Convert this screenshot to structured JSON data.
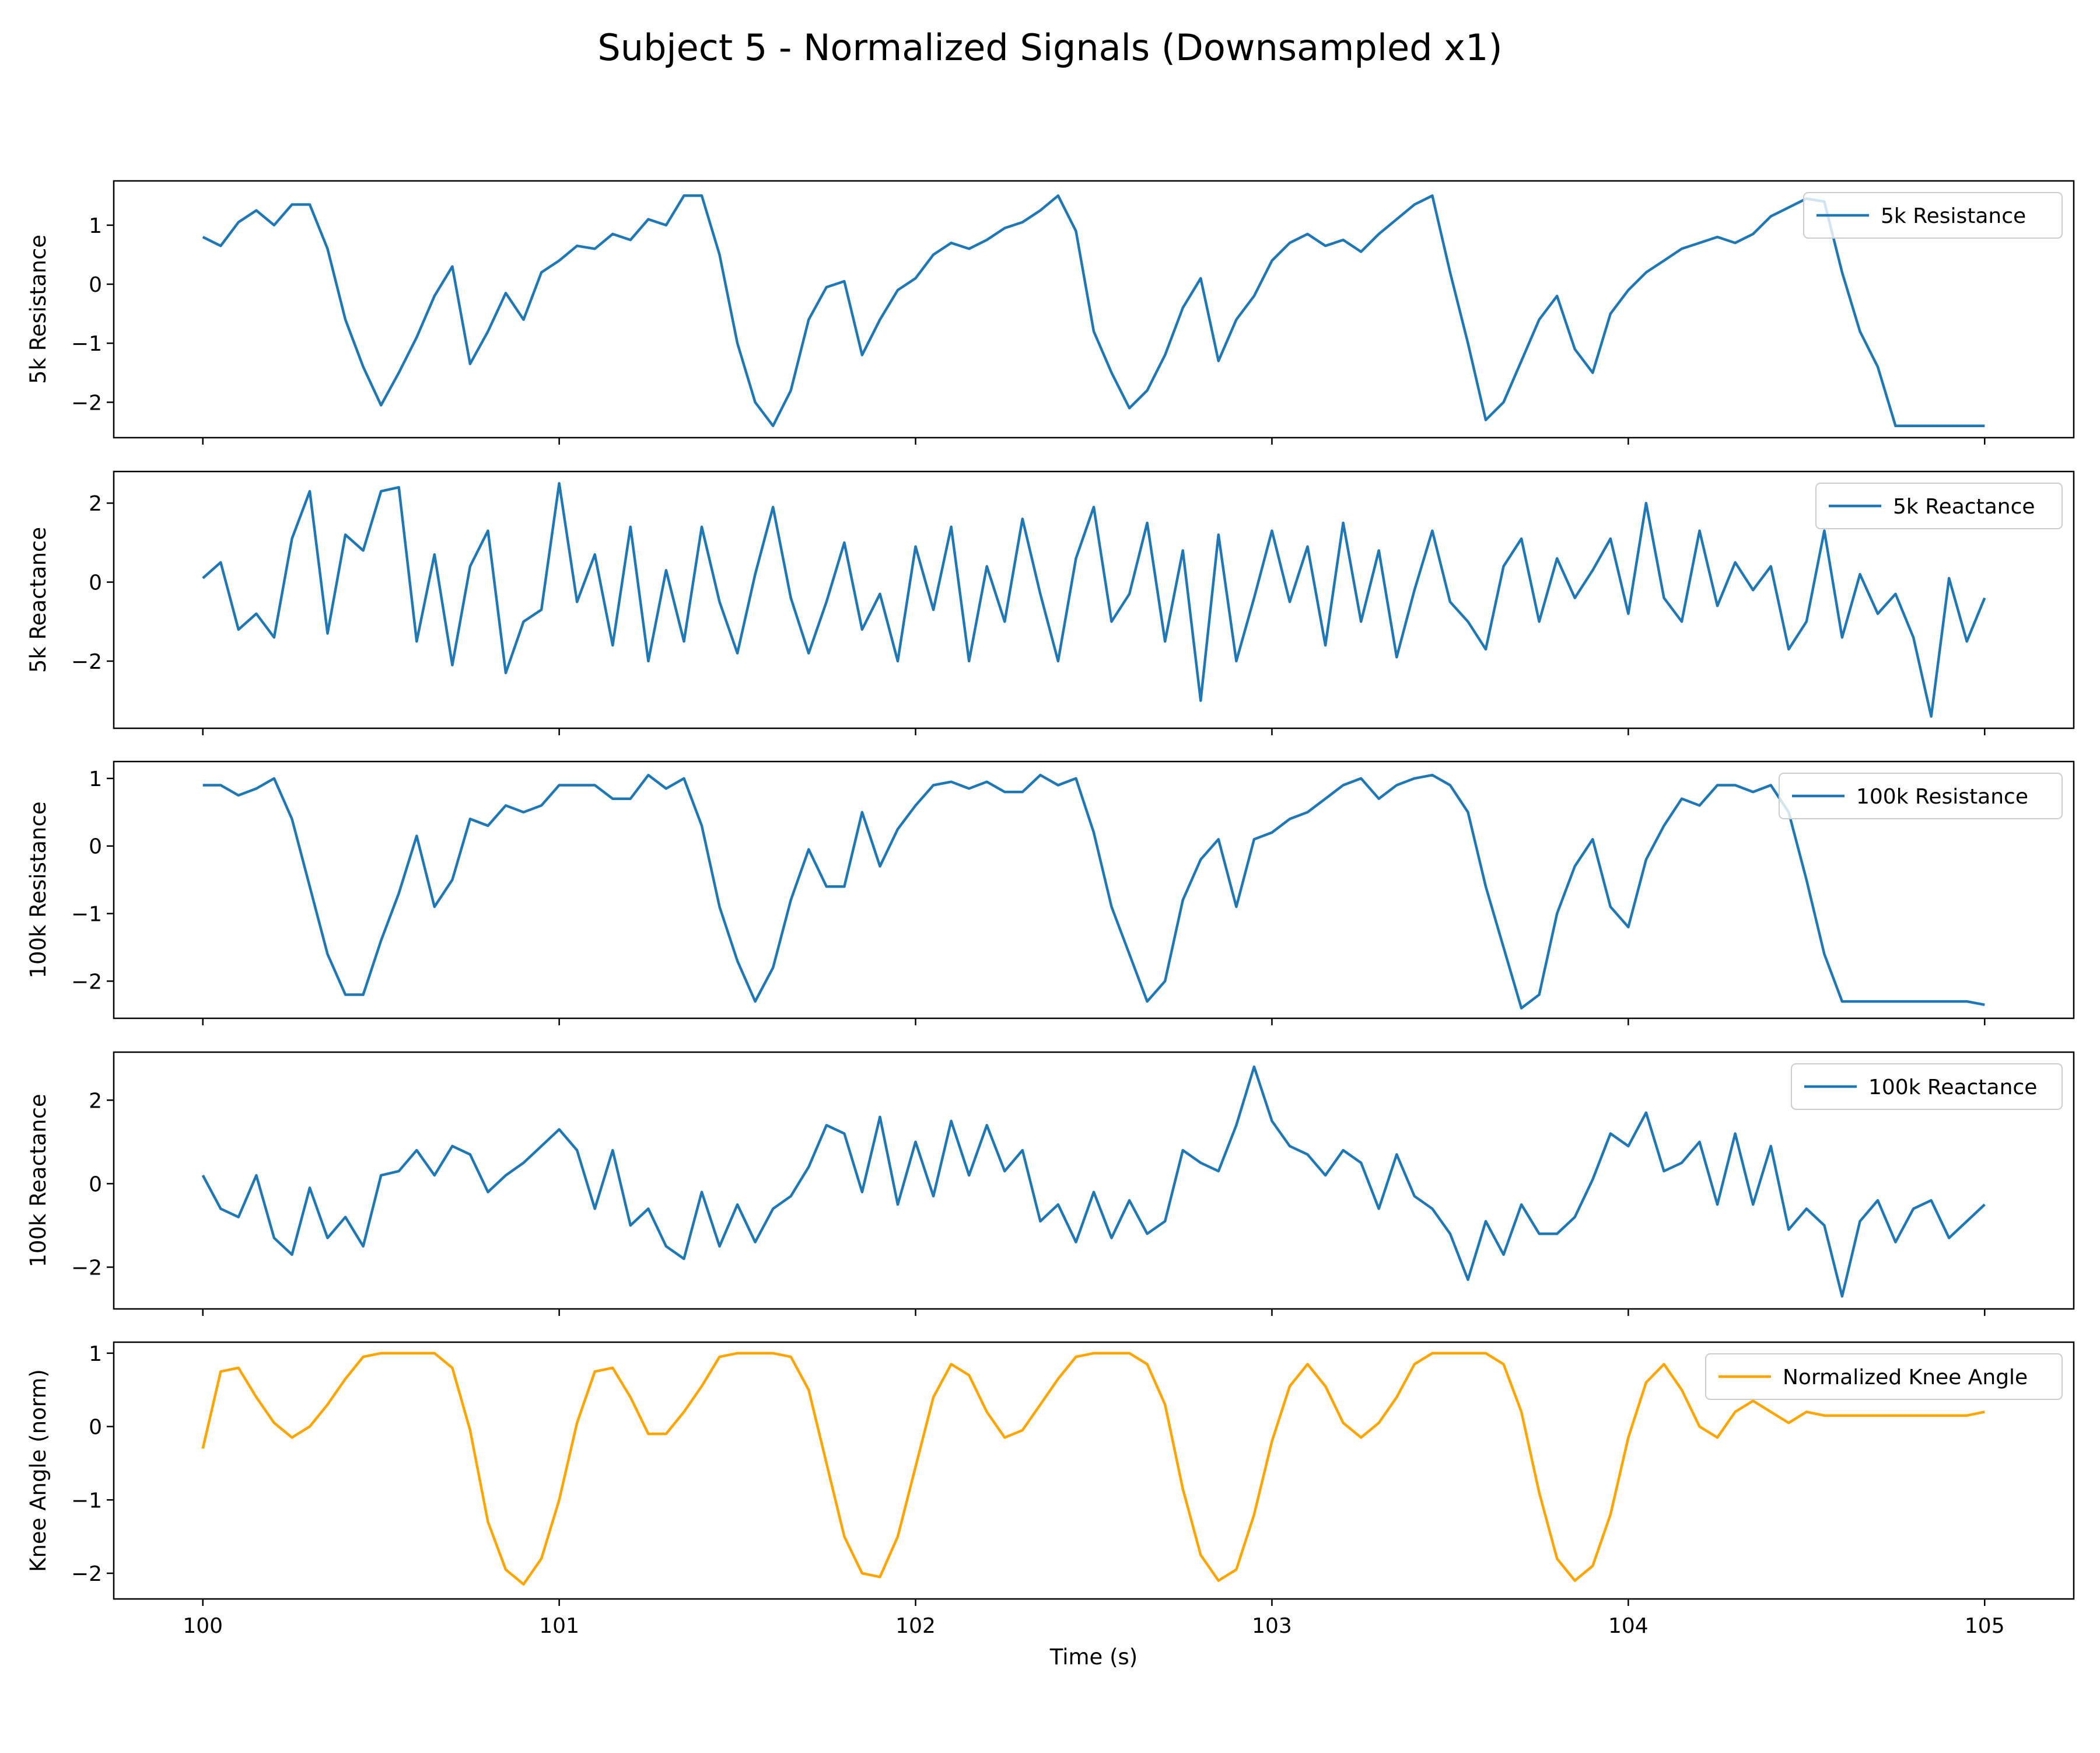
{
  "figure": {
    "title": "Subject 5 - Normalized Signals (Downsampled x1)",
    "xlabel": "Time (s)"
  },
  "chart_data": [
    {
      "type": "line",
      "ylabel": "5k Resistance",
      "legend": "5k Resistance",
      "legend_loc": "upper-right",
      "color": "#1f77b4",
      "xlim": [
        99.75,
        105.25
      ],
      "ylim": [
        -2.6,
        1.75
      ],
      "yticks": [
        1,
        0,
        -1,
        -2
      ],
      "xticks": [
        100,
        101,
        102,
        103,
        104,
        105
      ],
      "x": [
        100.0,
        100.05,
        100.1,
        100.15,
        100.2,
        100.25,
        100.3,
        100.35,
        100.4,
        100.45,
        100.5,
        100.55,
        100.6,
        100.65,
        100.7,
        100.75,
        100.8,
        100.85,
        100.9,
        100.95,
        101.0,
        101.05,
        101.1,
        101.15,
        101.2,
        101.25,
        101.3,
        101.35,
        101.4,
        101.45,
        101.5,
        101.55,
        101.6,
        101.65,
        101.7,
        101.75,
        101.8,
        101.85,
        101.9,
        101.95,
        102.0,
        102.05,
        102.1,
        102.15,
        102.2,
        102.25,
        102.3,
        102.35,
        102.4,
        102.45,
        102.5,
        102.55,
        102.6,
        102.65,
        102.7,
        102.75,
        102.8,
        102.85,
        102.9,
        102.95,
        103.0,
        103.05,
        103.1,
        103.15,
        103.2,
        103.25,
        103.3,
        103.35,
        103.4,
        103.45,
        103.5,
        103.55,
        103.6,
        103.65,
        103.7,
        103.75,
        103.8,
        103.85,
        103.9,
        103.95,
        104.0,
        104.05,
        104.1,
        104.15,
        104.2,
        104.25,
        104.3,
        104.35,
        104.4,
        104.45,
        104.5,
        104.55,
        104.6,
        104.65,
        104.7,
        104.75,
        104.8,
        104.85,
        104.9,
        104.95,
        105.0
      ],
      "y": [
        0.8,
        0.65,
        1.05,
        1.25,
        1.0,
        1.35,
        1.35,
        0.6,
        -0.6,
        -1.4,
        -2.05,
        -1.5,
        -0.9,
        -0.2,
        0.3,
        -1.35,
        -0.8,
        -0.15,
        -0.6,
        0.2,
        0.4,
        0.65,
        0.6,
        0.85,
        0.75,
        1.1,
        1.0,
        1.5,
        1.5,
        0.5,
        -1.0,
        -2.0,
        -2.4,
        -1.8,
        -0.6,
        -0.05,
        0.05,
        -1.2,
        -0.6,
        -0.1,
        0.1,
        0.5,
        0.7,
        0.6,
        0.75,
        0.95,
        1.05,
        1.25,
        1.5,
        0.9,
        -0.8,
        -1.5,
        -2.1,
        -1.8,
        -1.2,
        -0.4,
        0.1,
        -1.3,
        -0.6,
        -0.2,
        0.4,
        0.7,
        0.85,
        0.65,
        0.75,
        0.55,
        0.85,
        1.1,
        1.35,
        1.5,
        0.2,
        -1.0,
        -2.3,
        -2.0,
        -1.3,
        -0.6,
        -0.2,
        -1.1,
        -1.5,
        -0.5,
        -0.1,
        0.2,
        0.4,
        0.6,
        0.7,
        0.8,
        0.7,
        0.85,
        1.15,
        1.3,
        1.45,
        1.4,
        0.2,
        -0.8,
        -1.4,
        -2.4,
        -2.4,
        -2.4,
        -2.4,
        -2.4,
        -2.4
      ]
    },
    {
      "type": "line",
      "ylabel": "5k Reactance",
      "legend": "5k Reactance",
      "legend_loc": "upper-right",
      "color": "#1f77b4",
      "xlim": [
        99.75,
        105.25
      ],
      "ylim": [
        -3.7,
        2.8
      ],
      "yticks": [
        2,
        0,
        -2
      ],
      "xticks": [
        100,
        101,
        102,
        103,
        104,
        105
      ],
      "x": [
        100.0,
        100.05,
        100.1,
        100.15,
        100.2,
        100.25,
        100.3,
        100.35,
        100.4,
        100.45,
        100.5,
        100.55,
        100.6,
        100.65,
        100.7,
        100.75,
        100.8,
        100.85,
        100.9,
        100.95,
        101.0,
        101.05,
        101.1,
        101.15,
        101.2,
        101.25,
        101.3,
        101.35,
        101.4,
        101.45,
        101.5,
        101.55,
        101.6,
        101.65,
        101.7,
        101.75,
        101.8,
        101.85,
        101.9,
        101.95,
        102.0,
        102.05,
        102.1,
        102.15,
        102.2,
        102.25,
        102.3,
        102.35,
        102.4,
        102.45,
        102.5,
        102.55,
        102.6,
        102.65,
        102.7,
        102.75,
        102.8,
        102.85,
        102.9,
        102.95,
        103.0,
        103.05,
        103.1,
        103.15,
        103.2,
        103.25,
        103.3,
        103.35,
        103.4,
        103.45,
        103.5,
        103.55,
        103.6,
        103.65,
        103.7,
        103.75,
        103.8,
        103.85,
        103.9,
        103.95,
        104.0,
        104.05,
        104.1,
        104.15,
        104.2,
        104.25,
        104.3,
        104.35,
        104.4,
        104.45,
        104.5,
        104.55,
        104.6,
        104.65,
        104.7,
        104.75,
        104.8,
        104.85,
        104.9,
        104.95,
        105.0
      ],
      "y": [
        0.1,
        0.5,
        -1.2,
        -0.8,
        -1.4,
        1.1,
        2.3,
        -1.3,
        1.2,
        0.8,
        2.3,
        2.4,
        -1.5,
        0.7,
        -2.1,
        0.4,
        1.3,
        -2.3,
        -1.0,
        -0.7,
        2.5,
        -0.5,
        0.7,
        -1.6,
        1.4,
        -2.0,
        0.3,
        -1.5,
        1.4,
        -0.5,
        -1.8,
        0.2,
        1.9,
        -0.4,
        -1.8,
        -0.5,
        1.0,
        -1.2,
        -0.3,
        -2.0,
        0.9,
        -0.7,
        1.4,
        -2.0,
        0.4,
        -1.0,
        1.6,
        -0.3,
        -2.0,
        0.6,
        1.9,
        -1.0,
        -0.3,
        1.5,
        -1.5,
        0.8,
        -3.0,
        1.2,
        -2.0,
        -0.4,
        1.3,
        -0.5,
        0.9,
        -1.6,
        1.5,
        -1.0,
        0.8,
        -1.9,
        -0.2,
        1.3,
        -0.5,
        -1.0,
        -1.7,
        0.4,
        1.1,
        -1.0,
        0.6,
        -0.4,
        0.3,
        1.1,
        -0.8,
        2.0,
        -0.4,
        -1.0,
        1.3,
        -0.6,
        0.5,
        -0.2,
        0.4,
        -1.7,
        -1.0,
        1.3,
        -1.4,
        0.2,
        -0.8,
        -0.3,
        -1.4,
        -3.4,
        0.1,
        -1.5,
        -0.4
      ]
    },
    {
      "type": "line",
      "ylabel": "100k Resistance",
      "legend": "100k Resistance",
      "legend_loc": "upper-right",
      "color": "#1f77b4",
      "xlim": [
        99.75,
        105.25
      ],
      "ylim": [
        -2.55,
        1.25
      ],
      "yticks": [
        1,
        0,
        -1,
        -2
      ],
      "xticks": [
        100,
        101,
        102,
        103,
        104,
        105
      ],
      "x": [
        100.0,
        100.05,
        100.1,
        100.15,
        100.2,
        100.25,
        100.3,
        100.35,
        100.4,
        100.45,
        100.5,
        100.55,
        100.6,
        100.65,
        100.7,
        100.75,
        100.8,
        100.85,
        100.9,
        100.95,
        101.0,
        101.05,
        101.1,
        101.15,
        101.2,
        101.25,
        101.3,
        101.35,
        101.4,
        101.45,
        101.5,
        101.55,
        101.6,
        101.65,
        101.7,
        101.75,
        101.8,
        101.85,
        101.9,
        101.95,
        102.0,
        102.05,
        102.1,
        102.15,
        102.2,
        102.25,
        102.3,
        102.35,
        102.4,
        102.45,
        102.5,
        102.55,
        102.6,
        102.65,
        102.7,
        102.75,
        102.8,
        102.85,
        102.9,
        102.95,
        103.0,
        103.05,
        103.1,
        103.15,
        103.2,
        103.25,
        103.3,
        103.35,
        103.4,
        103.45,
        103.5,
        103.55,
        103.6,
        103.65,
        103.7,
        103.75,
        103.8,
        103.85,
        103.9,
        103.95,
        104.0,
        104.05,
        104.1,
        104.15,
        104.2,
        104.25,
        104.3,
        104.35,
        104.4,
        104.45,
        104.5,
        104.55,
        104.6,
        104.65,
        104.7,
        104.75,
        104.8,
        104.85,
        104.9,
        104.95,
        105.0
      ],
      "y": [
        0.9,
        0.9,
        0.75,
        0.85,
        1.0,
        0.4,
        -0.6,
        -1.6,
        -2.2,
        -2.2,
        -1.4,
        -0.7,
        0.15,
        -0.9,
        -0.5,
        0.4,
        0.3,
        0.6,
        0.5,
        0.6,
        0.9,
        0.9,
        0.9,
        0.7,
        0.7,
        1.05,
        0.85,
        1.0,
        0.3,
        -0.9,
        -1.7,
        -2.3,
        -1.8,
        -0.8,
        -0.05,
        -0.6,
        -0.6,
        0.5,
        -0.3,
        0.25,
        0.6,
        0.9,
        0.95,
        0.85,
        0.95,
        0.8,
        0.8,
        1.05,
        0.9,
        1.0,
        0.2,
        -0.9,
        -1.6,
        -2.3,
        -2.0,
        -0.8,
        -0.2,
        0.1,
        -0.9,
        0.1,
        0.2,
        0.4,
        0.5,
        0.7,
        0.9,
        1.0,
        0.7,
        0.9,
        1.0,
        1.05,
        0.9,
        0.5,
        -0.6,
        -1.5,
        -2.4,
        -2.2,
        -1.0,
        -0.3,
        0.1,
        -0.9,
        -1.2,
        -0.2,
        0.3,
        0.7,
        0.6,
        0.9,
        0.9,
        0.8,
        0.9,
        0.5,
        -0.5,
        -1.6,
        -2.3,
        -2.3,
        -2.3,
        -2.3,
        -2.3,
        -2.3,
        -2.3,
        -2.3,
        -2.35
      ]
    },
    {
      "type": "line",
      "ylabel": "100k Reactance",
      "legend": "100k Reactance",
      "legend_loc": "upper-right",
      "color": "#1f77b4",
      "xlim": [
        99.75,
        105.25
      ],
      "ylim": [
        -3.0,
        3.15
      ],
      "yticks": [
        2,
        0,
        -2
      ],
      "xticks": [
        100,
        101,
        102,
        103,
        104,
        105
      ],
      "x": [
        100.0,
        100.05,
        100.1,
        100.15,
        100.2,
        100.25,
        100.3,
        100.35,
        100.4,
        100.45,
        100.5,
        100.55,
        100.6,
        100.65,
        100.7,
        100.75,
        100.8,
        100.85,
        100.9,
        100.95,
        101.0,
        101.05,
        101.1,
        101.15,
        101.2,
        101.25,
        101.3,
        101.35,
        101.4,
        101.45,
        101.5,
        101.55,
        101.6,
        101.65,
        101.7,
        101.75,
        101.8,
        101.85,
        101.9,
        101.95,
        102.0,
        102.05,
        102.1,
        102.15,
        102.2,
        102.25,
        102.3,
        102.35,
        102.4,
        102.45,
        102.5,
        102.55,
        102.6,
        102.65,
        102.7,
        102.75,
        102.8,
        102.85,
        102.9,
        102.95,
        103.0,
        103.05,
        103.1,
        103.15,
        103.2,
        103.25,
        103.3,
        103.35,
        103.4,
        103.45,
        103.5,
        103.55,
        103.6,
        103.65,
        103.7,
        103.75,
        103.8,
        103.85,
        103.9,
        103.95,
        104.0,
        104.05,
        104.1,
        104.15,
        104.2,
        104.25,
        104.3,
        104.35,
        104.4,
        104.45,
        104.5,
        104.55,
        104.6,
        104.65,
        104.7,
        104.75,
        104.8,
        104.85,
        104.9,
        104.95,
        105.0
      ],
      "y": [
        0.2,
        -0.6,
        -0.8,
        0.2,
        -1.3,
        -1.7,
        -0.1,
        -1.3,
        -0.8,
        -1.5,
        0.2,
        0.3,
        0.8,
        0.2,
        0.9,
        0.7,
        -0.2,
        0.2,
        0.5,
        0.9,
        1.3,
        0.8,
        -0.6,
        0.8,
        -1.0,
        -0.6,
        -1.5,
        -1.8,
        -0.2,
        -1.5,
        -0.5,
        -1.4,
        -0.6,
        -0.3,
        0.4,
        1.4,
        1.2,
        -0.2,
        1.6,
        -0.5,
        1.0,
        -0.3,
        1.5,
        0.2,
        1.4,
        0.3,
        0.8,
        -0.9,
        -0.5,
        -1.4,
        -0.2,
        -1.3,
        -0.4,
        -1.2,
        -0.9,
        0.8,
        0.5,
        0.3,
        1.4,
        2.8,
        1.5,
        0.9,
        0.7,
        0.2,
        0.8,
        0.5,
        -0.6,
        0.7,
        -0.3,
        -0.6,
        -1.2,
        -2.3,
        -0.9,
        -1.7,
        -0.5,
        -1.2,
        -1.2,
        -0.8,
        0.1,
        1.2,
        0.9,
        1.7,
        0.3,
        0.5,
        1.0,
        -0.5,
        1.2,
        -0.5,
        0.9,
        -1.1,
        -0.6,
        -1.0,
        -2.7,
        -0.9,
        -0.4,
        -1.4,
        -0.6,
        -0.4,
        -1.3,
        -0.9,
        -0.5
      ]
    },
    {
      "type": "line",
      "ylabel": "Knee Angle (norm)",
      "legend": "Normalized Knee Angle",
      "legend_loc": "upper-right",
      "color": "#ffa500",
      "xlim": [
        99.75,
        105.25
      ],
      "ylim": [
        -2.35,
        1.15
      ],
      "yticks": [
        1,
        0,
        -1,
        -2
      ],
      "xticks": [
        100,
        101,
        102,
        103,
        104,
        105
      ],
      "x": [
        100.0,
        100.05,
        100.1,
        100.15,
        100.2,
        100.25,
        100.3,
        100.35,
        100.4,
        100.45,
        100.5,
        100.55,
        100.6,
        100.65,
        100.7,
        100.75,
        100.8,
        100.85,
        100.9,
        100.95,
        101.0,
        101.05,
        101.1,
        101.15,
        101.2,
        101.25,
        101.3,
        101.35,
        101.4,
        101.45,
        101.5,
        101.55,
        101.6,
        101.65,
        101.7,
        101.75,
        101.8,
        101.85,
        101.9,
        101.95,
        102.0,
        102.05,
        102.1,
        102.15,
        102.2,
        102.25,
        102.3,
        102.35,
        102.4,
        102.45,
        102.5,
        102.55,
        102.6,
        102.65,
        102.7,
        102.75,
        102.8,
        102.85,
        102.9,
        102.95,
        103.0,
        103.05,
        103.1,
        103.15,
        103.2,
        103.25,
        103.3,
        103.35,
        103.4,
        103.45,
        103.5,
        103.55,
        103.6,
        103.65,
        103.7,
        103.75,
        103.8,
        103.85,
        103.9,
        103.95,
        104.0,
        104.05,
        104.1,
        104.15,
        104.2,
        104.25,
        104.3,
        104.35,
        104.4,
        104.45,
        104.5,
        104.55,
        104.6,
        104.65,
        104.7,
        104.75,
        104.8,
        104.85,
        104.9,
        104.95,
        105.0
      ],
      "y": [
        -0.3,
        0.75,
        0.8,
        0.4,
        0.05,
        -0.15,
        0.0,
        0.3,
        0.65,
        0.95,
        1.0,
        1.0,
        1.0,
        1.0,
        0.8,
        -0.05,
        -1.3,
        -1.95,
        -2.15,
        -1.8,
        -1.0,
        0.05,
        0.75,
        0.8,
        0.4,
        -0.1,
        -0.1,
        0.2,
        0.55,
        0.95,
        1.0,
        1.0,
        1.0,
        0.95,
        0.5,
        -0.5,
        -1.5,
        -2.0,
        -2.05,
        -1.5,
        -0.55,
        0.4,
        0.85,
        0.7,
        0.2,
        -0.15,
        -0.05,
        0.3,
        0.65,
        0.95,
        1.0,
        1.0,
        1.0,
        0.85,
        0.3,
        -0.85,
        -1.75,
        -2.1,
        -1.95,
        -1.2,
        -0.2,
        0.55,
        0.85,
        0.55,
        0.05,
        -0.15,
        0.05,
        0.4,
        0.85,
        1.0,
        1.0,
        1.0,
        1.0,
        0.85,
        0.2,
        -0.9,
        -1.8,
        -2.1,
        -1.9,
        -1.2,
        -0.15,
        0.6,
        0.85,
        0.5,
        0.0,
        -0.15,
        0.2,
        0.35,
        0.2,
        0.05,
        0.2,
        0.15,
        0.15,
        0.15,
        0.15,
        0.15,
        0.15,
        0.15,
        0.15,
        0.15,
        0.2
      ]
    }
  ]
}
